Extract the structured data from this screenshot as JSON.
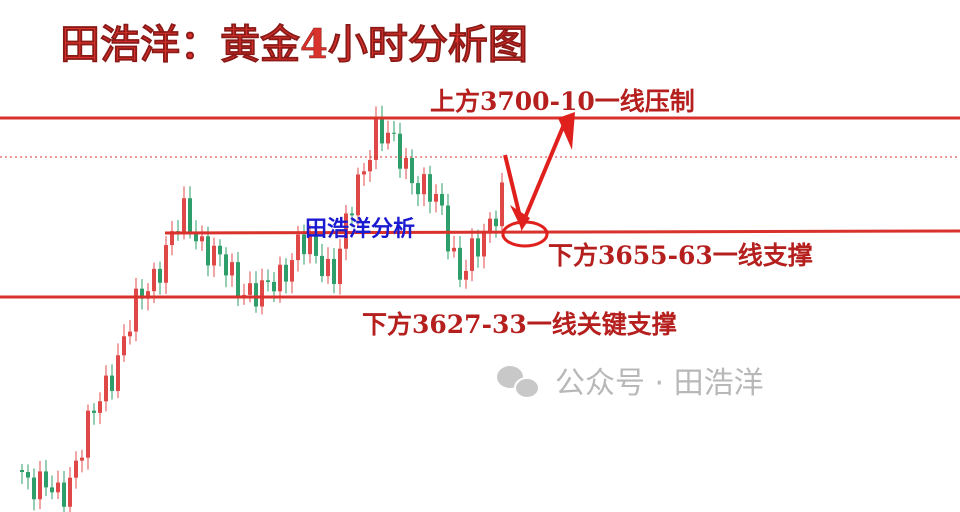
{
  "title": "田浩洋：黄金4小时分析图",
  "annotations": {
    "resistance": "上方3700-10一线压制",
    "author": "田浩洋分析",
    "support": "下方3655-63一线支撑",
    "key_support": "下方3627-33一线关键支撑"
  },
  "watermark": "公众号 · 田浩洋"
}
